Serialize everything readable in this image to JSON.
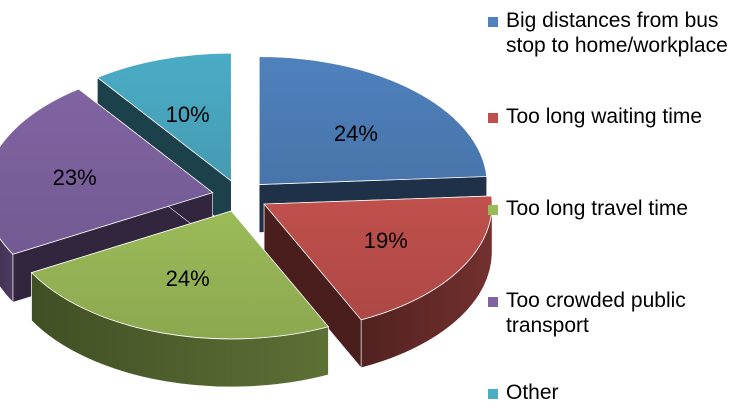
{
  "chart_data": {
    "type": "pie",
    "title": "",
    "style": "3d-exploded",
    "legend_position": "right",
    "categories": [
      "Big distances from bus stop to home/workplace",
      "Too long waiting time",
      "Too long travel time",
      "Too crowded public transport",
      "Other"
    ],
    "values": [
      24,
      19,
      24,
      23,
      10
    ],
    "labels": [
      "24%",
      "19%",
      "24%",
      "23%",
      "10%"
    ],
    "colors": [
      "#4F81BD",
      "#C0504D",
      "#9BBB59",
      "#8064A2",
      "#4BACC6"
    ]
  }
}
